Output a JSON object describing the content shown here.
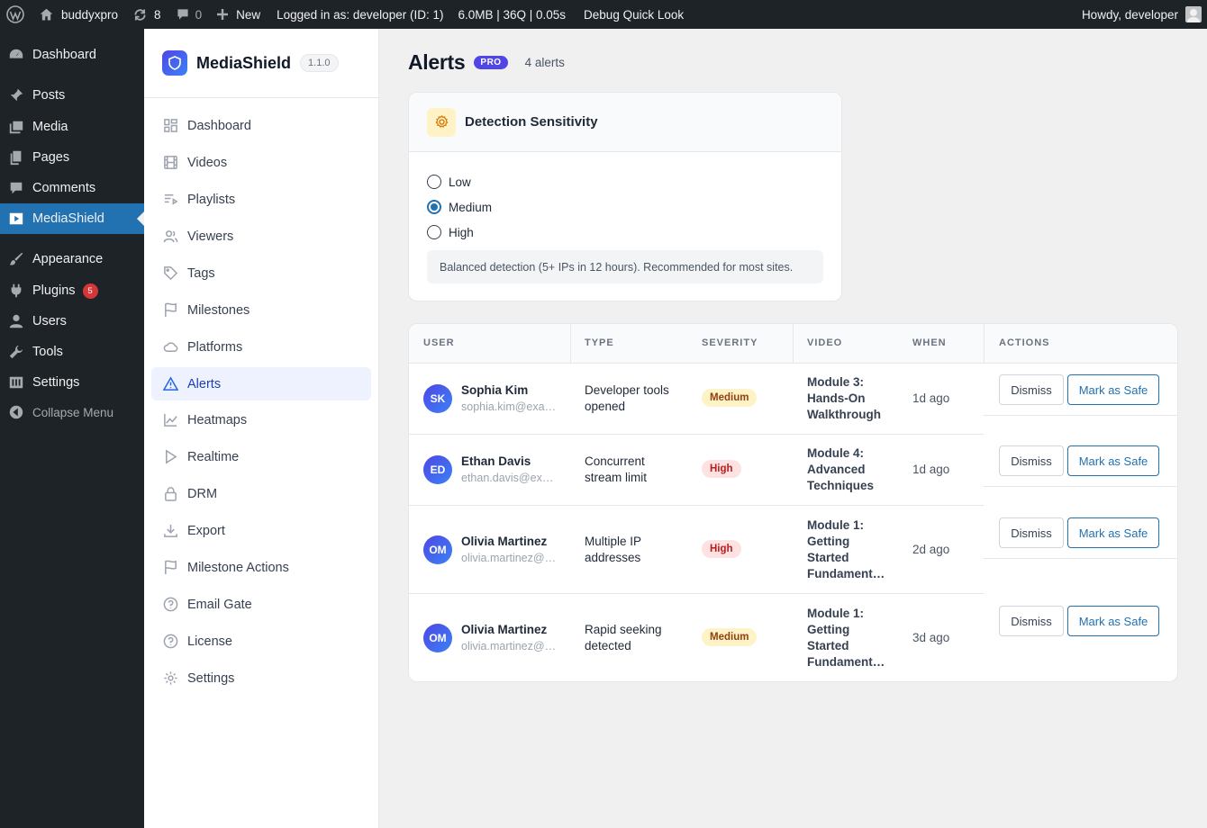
{
  "adminbar": {
    "site_name": "buddyxpro",
    "updates_count": "8",
    "comments_count": "0",
    "new_label": "New",
    "logged_in": "Logged in as: developer (ID: 1)",
    "perf": "6.0MB | 36Q | 0.05s",
    "debug": "Debug Quick Look",
    "howdy": "Howdy, developer"
  },
  "wp_menu": {
    "dashboard": "Dashboard",
    "posts": "Posts",
    "media": "Media",
    "pages": "Pages",
    "comments": "Comments",
    "mediashield": "MediaShield",
    "appearance": "Appearance",
    "plugins": "Plugins",
    "plugins_badge": "5",
    "users": "Users",
    "tools": "Tools",
    "settings": "Settings",
    "collapse": "Collapse Menu"
  },
  "plugin": {
    "name": "MediaShield",
    "version": "1.1.0",
    "nav": [
      {
        "label": "Dashboard",
        "icon": "grid-icon"
      },
      {
        "label": "Videos",
        "icon": "film-icon"
      },
      {
        "label": "Playlists",
        "icon": "playlist-icon"
      },
      {
        "label": "Viewers",
        "icon": "users-icon"
      },
      {
        "label": "Tags",
        "icon": "tag-icon"
      },
      {
        "label": "Milestones",
        "icon": "flag-icon"
      },
      {
        "label": "Platforms",
        "icon": "cloud-icon"
      },
      {
        "label": "Alerts",
        "icon": "warning-icon",
        "active": true
      },
      {
        "label": "Heatmaps",
        "icon": "chart-icon"
      },
      {
        "label": "Realtime",
        "icon": "play-icon"
      },
      {
        "label": "DRM",
        "icon": "lock-icon"
      },
      {
        "label": "Export",
        "icon": "download-icon"
      },
      {
        "label": "Milestone Actions",
        "icon": "flag-icon"
      },
      {
        "label": "Email Gate",
        "icon": "help-circle-icon"
      },
      {
        "label": "License",
        "icon": "help-circle-icon"
      },
      {
        "label": "Settings",
        "icon": "gear-icon"
      }
    ]
  },
  "page": {
    "title": "Alerts",
    "badge": "PRO",
    "count": "4 alerts"
  },
  "sensitivity": {
    "title": "Detection Sensitivity",
    "options": [
      "Low",
      "Medium",
      "High"
    ],
    "selected": "Medium",
    "hint": "Balanced detection (5+ IPs in 12 hours). Recommended for most sites."
  },
  "alerts_table": {
    "headers": [
      "USER",
      "TYPE",
      "SEVERITY",
      "VIDEO",
      "WHEN",
      "ACTIONS"
    ],
    "dismiss_label": "Dismiss",
    "safe_label": "Mark as Safe",
    "rows": [
      {
        "initials": "SK",
        "name": "Sophia Kim",
        "email": "sophia.kim@example.com",
        "type": "Developer tools opened",
        "severity": "Medium",
        "video": "Module 3: Hands-On Walkthrough",
        "when": "1d ago"
      },
      {
        "initials": "ED",
        "name": "Ethan Davis",
        "email": "ethan.davis@example.com",
        "type": "Concurrent stream limit",
        "severity": "High",
        "video": "Module 4: Advanced Techniques",
        "when": "1d ago"
      },
      {
        "initials": "OM",
        "name": "Olivia Martinez",
        "email": "olivia.martinez@example.com",
        "type": "Multiple IP addresses",
        "severity": "High",
        "video": "Module 1: Getting Started Fundament…",
        "when": "2d ago"
      },
      {
        "initials": "OM",
        "name": "Olivia Martinez",
        "email": "olivia.martinez@example.com",
        "type": "Rapid seeking detected",
        "severity": "Medium",
        "video": "Module 1: Getting Started Fundament…",
        "when": "3d ago"
      }
    ]
  },
  "colors": {
    "wp_dark": "#1d2327",
    "wp_blue": "#2271b1",
    "brand": "#4f46e5",
    "sev_medium_bg": "#fef3c7",
    "sev_high_bg": "#fee2e2"
  }
}
